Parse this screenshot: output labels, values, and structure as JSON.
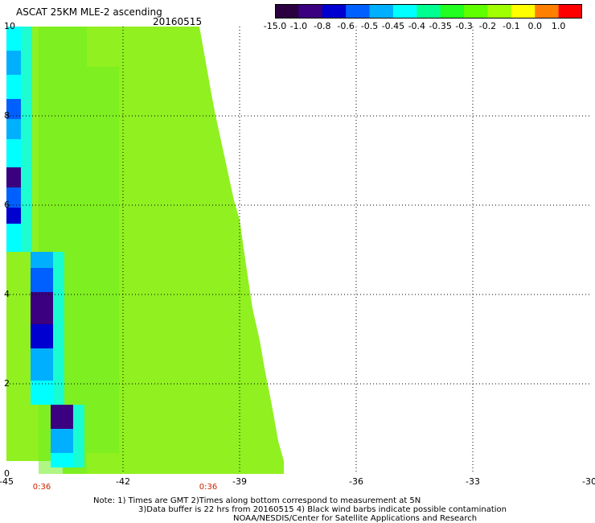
{
  "title": "ASCAT 25KM MLE-2 ascending",
  "date": "20160515",
  "colorbar": {
    "labels": [
      "-15.0",
      "-1.0",
      "-0.8",
      "-0.6",
      "-0.5",
      "-0.45",
      "-0.4",
      "-0.35",
      "-0.3",
      "-0.2",
      "-0.1",
      "0.0",
      "1.0"
    ],
    "colors": [
      "#2a0040",
      "#3a0080",
      "#0000d0",
      "#0060ff",
      "#00b0ff",
      "#00ffff",
      "#00ff90",
      "#20ff20",
      "#60ff00",
      "#a0ff00",
      "#ffff00",
      "#ff8000",
      "#ff0000"
    ]
  },
  "axes": {
    "y_labels": [
      "10",
      "8",
      "6",
      "4",
      "2",
      "0"
    ],
    "x_labels": [
      "-45",
      "-42",
      "-39",
      "-36",
      "-33",
      "-30"
    ],
    "time_labels": [
      "0:36",
      "0:36"
    ]
  },
  "swath": {
    "main_color": "#90f020",
    "left_edge_colors": [
      "#00ffff",
      "#00b0ff",
      "#0060ff",
      "#0000d0",
      "#3a0080"
    ],
    "note": ""
  },
  "notes": [
    "Note: 1) Times are GMT 2)Times along bottom correspond to measurement at 5N",
    "3)Data buffer is 22 hrs from 20160515 4) Black wind barbs indicate possible contamination",
    "NOAA/NESDIS/Center for Satellite Applications and Research"
  ]
}
